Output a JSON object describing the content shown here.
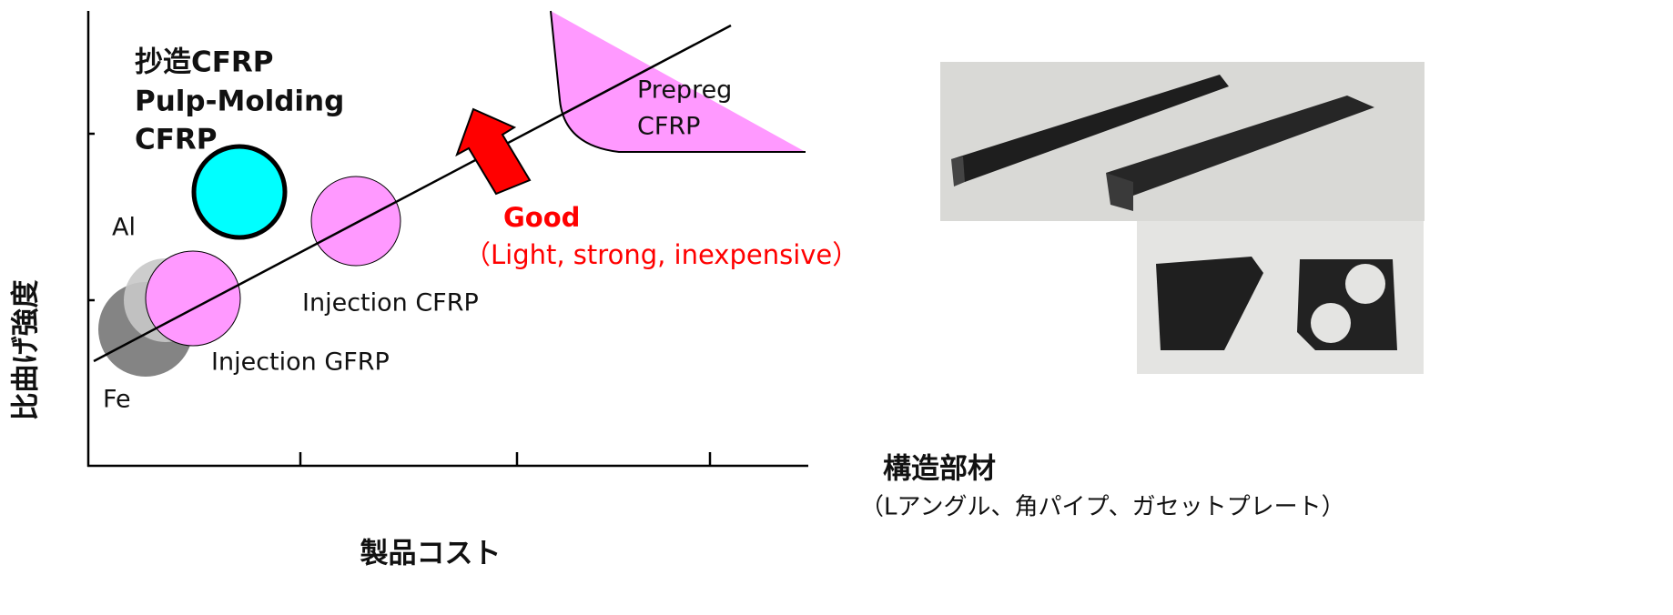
{
  "axes": {
    "y_label": "比曲げ強度",
    "x_label": "製品コスト"
  },
  "regions": {
    "pulp_molding": {
      "lines": [
        "抄造CFRP",
        "Pulp-Molding",
        "CFRP"
      ]
    },
    "prepreg": {
      "lines": [
        "Prepreg",
        "CFRP"
      ]
    },
    "al": "Al",
    "fe": "Fe",
    "injection_gfrp": "Injection GFRP",
    "injection_cfrp": "Injection CFRP"
  },
  "arrow": {
    "title": "Good",
    "subtitle": "（Light, strong, inexpensive）"
  },
  "photo_caption": {
    "title": "構造部材",
    "subtitle": "（Lアングル、角パイプ、ガセットプレート）"
  }
}
